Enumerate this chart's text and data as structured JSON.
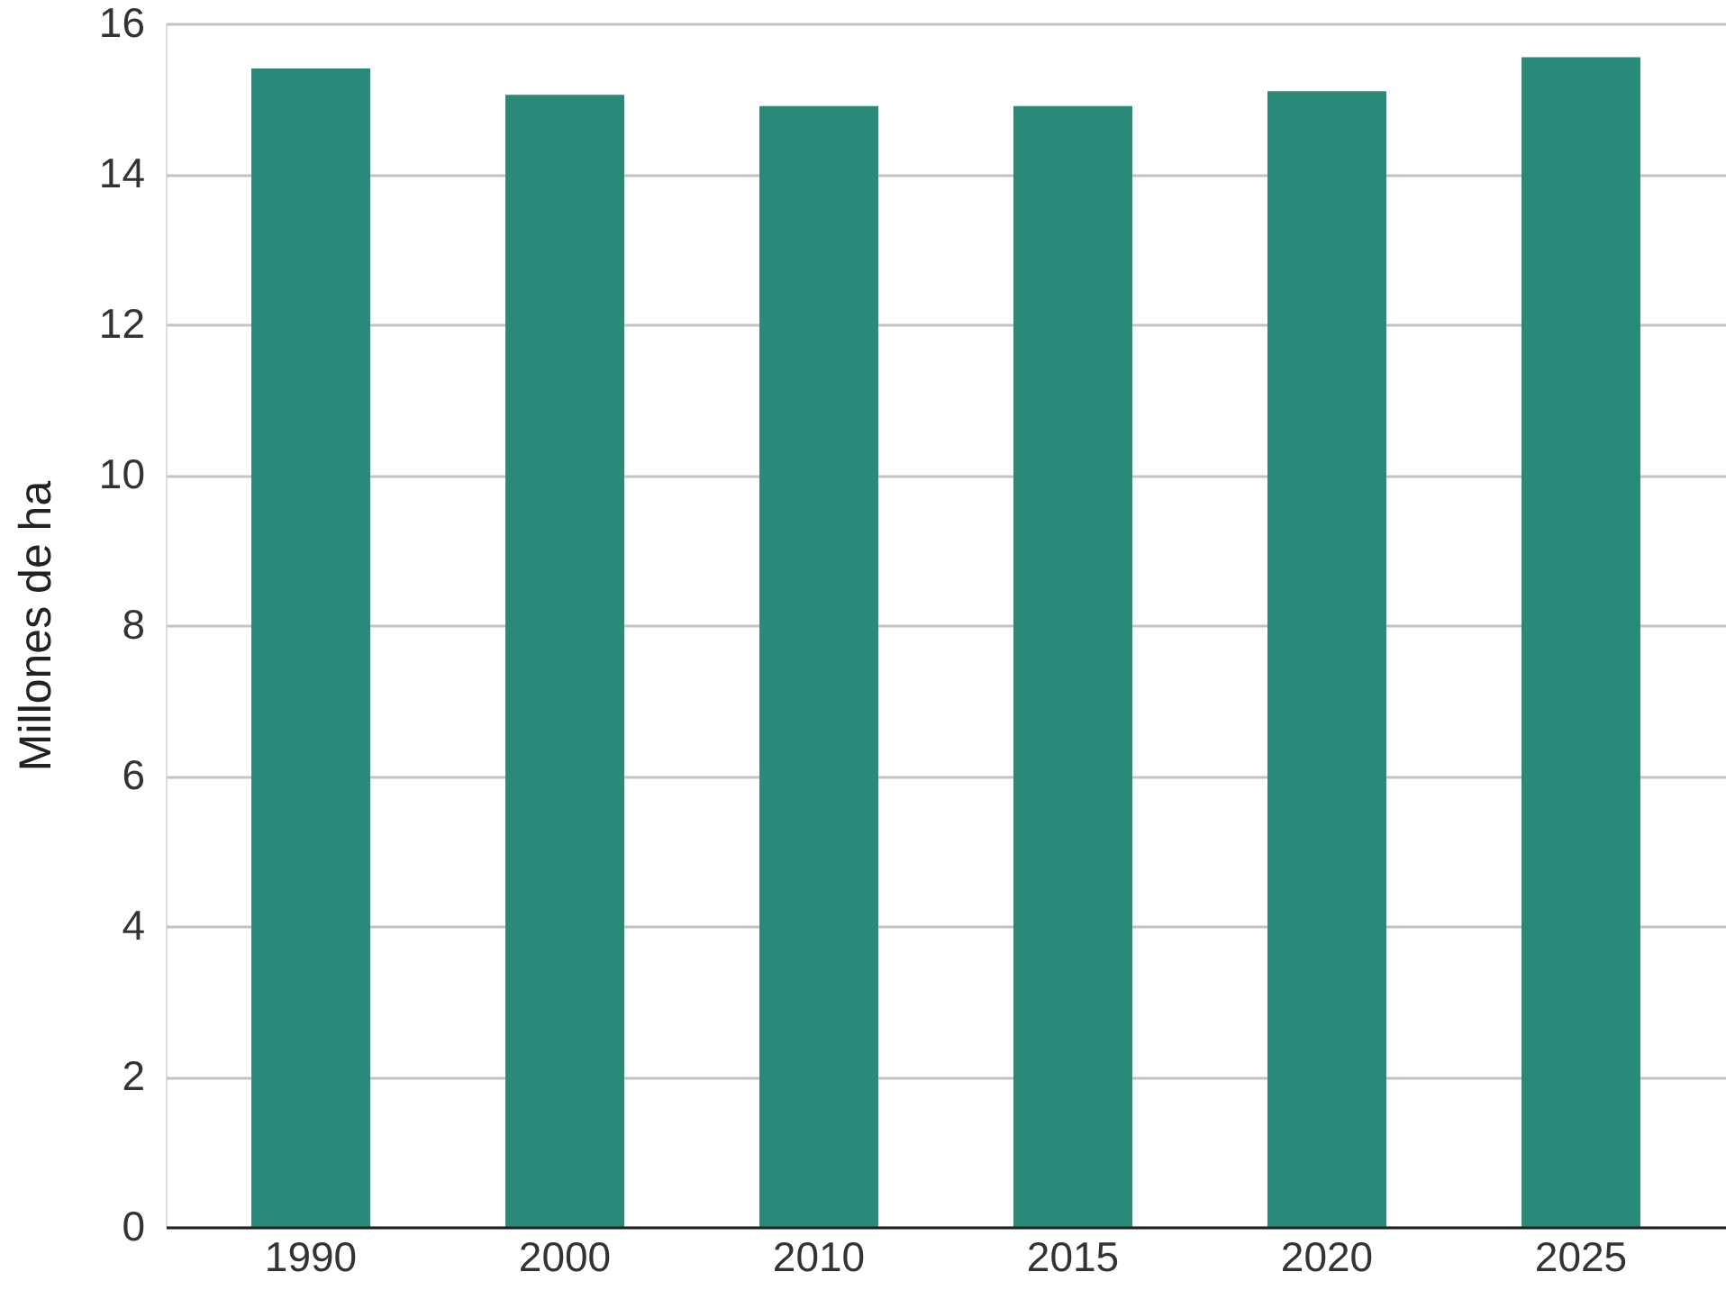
{
  "chart_data": {
    "type": "bar",
    "ylabel": "Millones de ha",
    "categories": [
      "1990",
      "2000",
      "2010",
      "2015",
      "2020",
      "2025"
    ],
    "values": [
      15.4,
      15.05,
      14.9,
      14.9,
      15.1,
      15.55
    ],
    "color": "#2a8a7a",
    "ylim": [
      0,
      16
    ],
    "yticks": [
      0,
      2,
      4,
      6,
      8,
      10,
      12,
      14,
      16
    ],
    "grid": "y"
  }
}
